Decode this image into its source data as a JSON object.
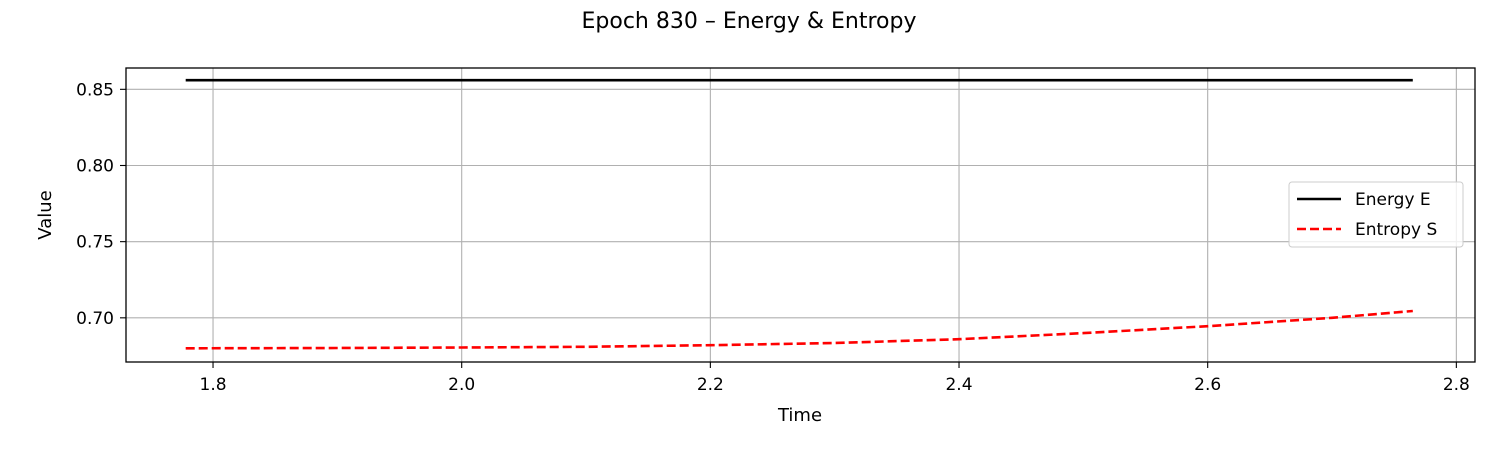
{
  "chart_data": {
    "type": "line",
    "title": "Epoch 830 – Energy & Entropy",
    "xlabel": "Time",
    "ylabel": "Value",
    "xlim": [
      1.73,
      2.815
    ],
    "ylim": [
      0.671,
      0.864
    ],
    "xticks": [
      "1.8",
      "2.0",
      "2.2",
      "2.4",
      "2.6",
      "2.8"
    ],
    "yticks": [
      "0.70",
      "0.75",
      "0.80",
      "0.85"
    ],
    "grid": true,
    "legend_position": "center-right",
    "series": [
      {
        "name": "Energy E",
        "color": "#000000",
        "style": "solid",
        "x": [
          1.778,
          2.0,
          2.2,
          2.4,
          2.6,
          2.765
        ],
        "y": [
          0.856,
          0.856,
          0.856,
          0.856,
          0.856,
          0.856
        ]
      },
      {
        "name": "Entropy S",
        "color": "#ff0000",
        "style": "dashed",
        "x": [
          1.778,
          1.9,
          2.0,
          2.1,
          2.2,
          2.3,
          2.4,
          2.5,
          2.6,
          2.7,
          2.765
        ],
        "y": [
          0.68,
          0.6802,
          0.6805,
          0.681,
          0.682,
          0.6835,
          0.686,
          0.69,
          0.6945,
          0.7,
          0.7045
        ]
      }
    ]
  }
}
